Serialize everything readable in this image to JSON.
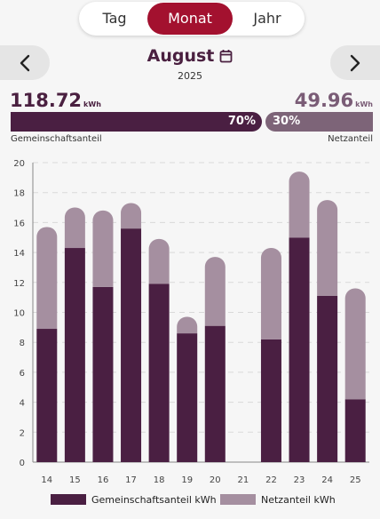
{
  "tabs": [
    {
      "label": "Tag",
      "active": false
    },
    {
      "label": "Monat",
      "active": true
    },
    {
      "label": "Jahr",
      "active": false
    }
  ],
  "header": {
    "month": "August",
    "year": "2025"
  },
  "totals": {
    "community_value": "118.72",
    "community_unit": "kWh",
    "grid_value": "49.96",
    "grid_unit": "kWh",
    "community_percent": "70%",
    "grid_percent": "30%",
    "community_label": "Gemeinschaftsanteil",
    "grid_label": "Netzanteil"
  },
  "colors": {
    "accent": "#a3112f",
    "community": "#4a1f42",
    "grid": "#a58fa0"
  },
  "chart_data": {
    "type": "bar",
    "stacked": true,
    "categories": [
      "14",
      "15",
      "16",
      "17",
      "18",
      "19",
      "20",
      "21",
      "22",
      "23",
      "24",
      "25"
    ],
    "series": [
      {
        "name": "Gemeinschaftsanteil kWh",
        "values": [
          8.9,
          14.3,
          11.7,
          15.6,
          11.9,
          8.6,
          9.1,
          0,
          8.2,
          15.0,
          11.1,
          4.2
        ]
      },
      {
        "name": "Netzanteil kWh",
        "values": [
          6.8,
          2.7,
          5.1,
          1.7,
          3.0,
          1.1,
          4.6,
          0,
          6.1,
          4.4,
          6.4,
          7.4
        ]
      }
    ],
    "yticks": [
      0,
      2,
      4,
      6,
      8,
      10,
      12,
      14,
      16,
      18,
      20
    ],
    "ylim": [
      0,
      20
    ],
    "grid": true,
    "legend_position": "bottom"
  }
}
